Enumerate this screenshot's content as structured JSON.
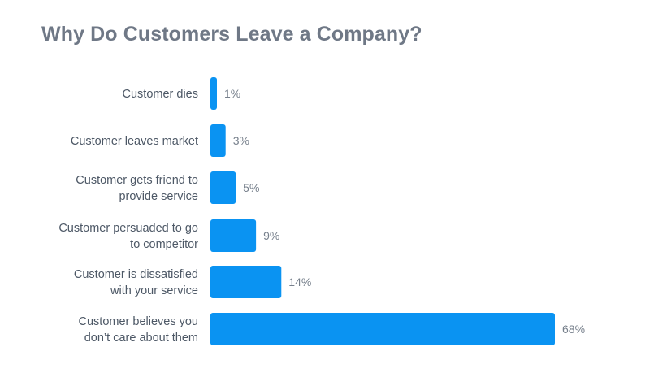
{
  "colors": {
    "bar": "#0a93f2",
    "title": "#6f7886",
    "category_label": "#4d5866",
    "value_label": "#77808c",
    "background": "#ffffff"
  },
  "chart_data": {
    "type": "bar",
    "orientation": "horizontal",
    "title": "Why Do Customers Leave a Company?",
    "xlabel": "",
    "ylabel": "",
    "unit": "%",
    "grid": false,
    "legend": "none",
    "xlim": [
      0,
      68
    ],
    "categories": [
      [
        "Customer dies"
      ],
      [
        "Customer leaves market"
      ],
      [
        "Customer gets friend to",
        "provide service"
      ],
      [
        "Customer persuaded to go",
        "to competitor"
      ],
      [
        "Customer is dissatisfied",
        "with your service"
      ],
      [
        "Customer believes you",
        "don’t care about them"
      ]
    ],
    "values": [
      1,
      3,
      5,
      9,
      14,
      68
    ],
    "value_labels": [
      "1%",
      "3%",
      "5%",
      "9%",
      "14%",
      "68%"
    ]
  }
}
